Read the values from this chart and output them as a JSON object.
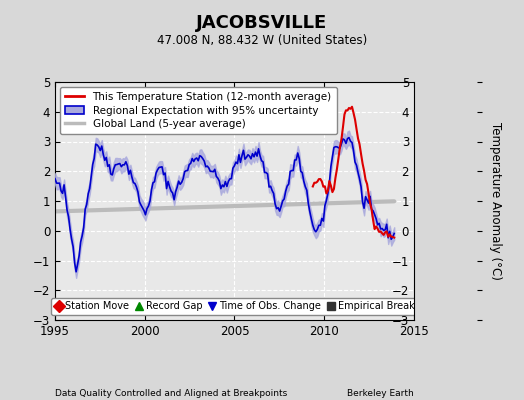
{
  "title": "JACOBSVILLE",
  "subtitle": "47.008 N, 88.432 W (United States)",
  "ylabel": "Temperature Anomaly (°C)",
  "xlabel_left": "Data Quality Controlled and Aligned at Breakpoints",
  "xlabel_right": "Berkeley Earth",
  "xlim": [
    1995,
    2015
  ],
  "ylim": [
    -3,
    5
  ],
  "yticks": [
    -3,
    -2,
    -1,
    0,
    1,
    2,
    3,
    4,
    5
  ],
  "xticks": [
    1995,
    2000,
    2005,
    2010,
    2015
  ],
  "background_color": "#d8d8d8",
  "plot_background": "#e8e8e8",
  "grid_color": "#ffffff",
  "blue_line_color": "#0000cc",
  "blue_fill_color": "#aaaadd",
  "red_line_color": "#dd0000",
  "gray_line_color": "#bbbbbb",
  "legend_items": [
    "This Temperature Station (12-month average)",
    "Regional Expectation with 95% uncertainty",
    "Global Land (5-year average)"
  ],
  "bottom_legend": [
    {
      "marker": "D",
      "color": "#dd0000",
      "label": "Station Move"
    },
    {
      "marker": "^",
      "color": "#008800",
      "label": "Record Gap"
    },
    {
      "marker": "v",
      "color": "#0000cc",
      "label": "Time of Obs. Change"
    },
    {
      "marker": "s",
      "color": "#333333",
      "label": "Empirical Break"
    }
  ]
}
